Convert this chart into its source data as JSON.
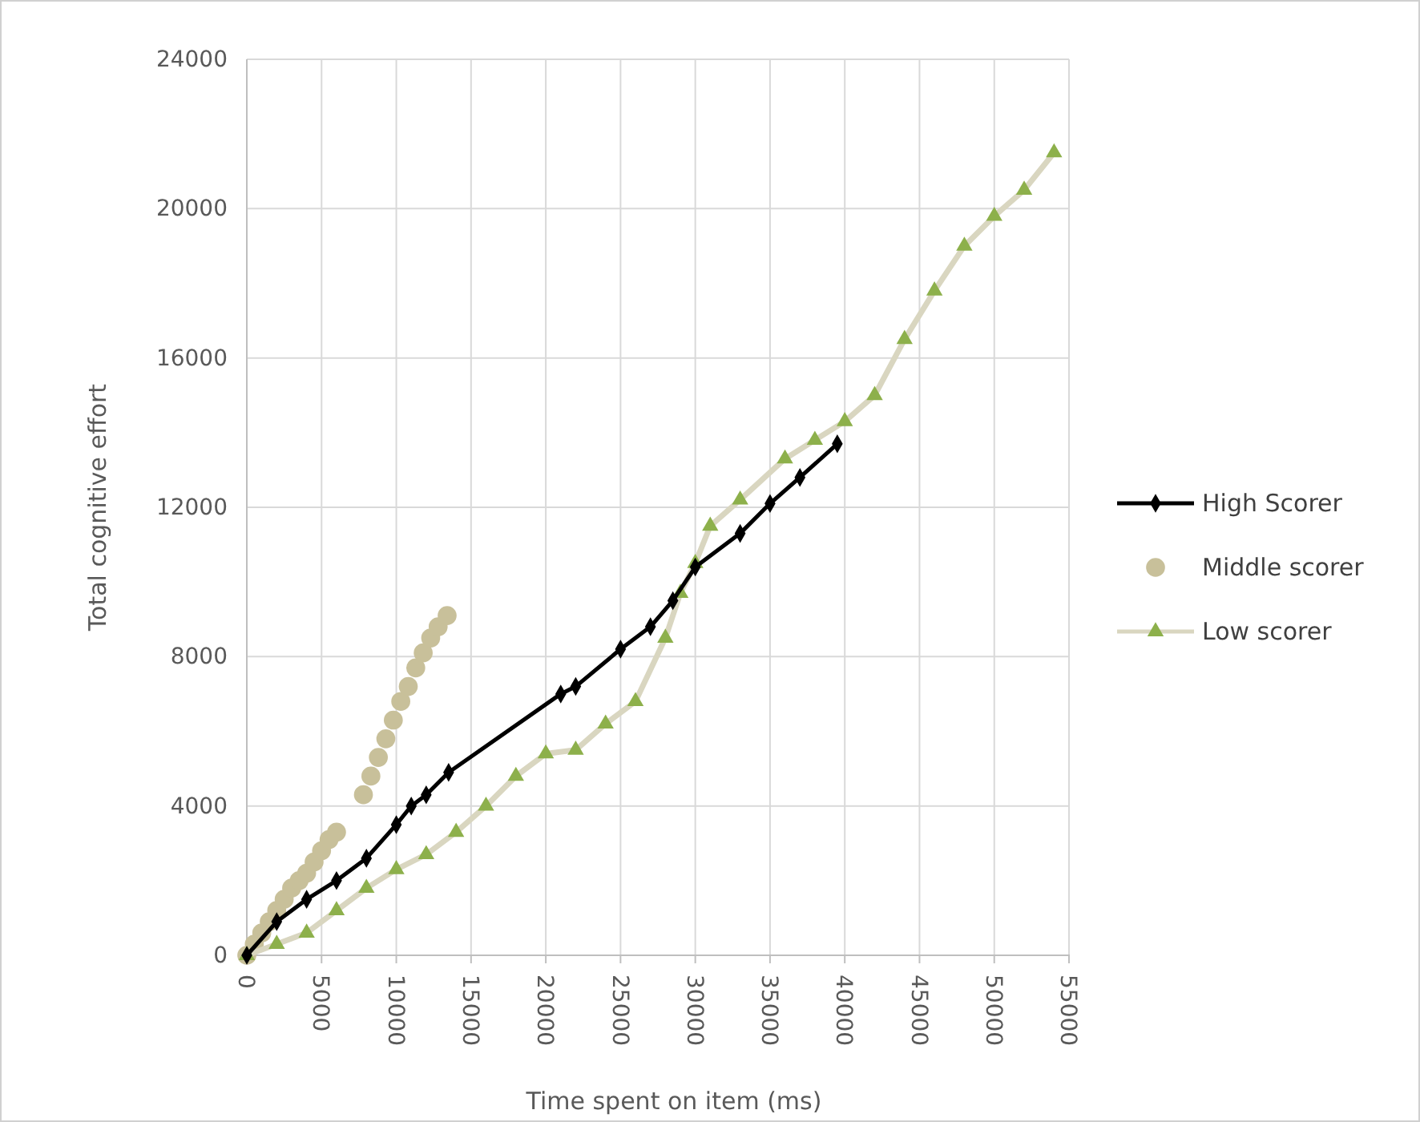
{
  "chart_data": {
    "type": "line",
    "xlabel": "Time spent on item (ms)",
    "ylabel": "Total cognitive effort",
    "xlim": [
      0,
      55000
    ],
    "xticks": [
      0,
      5000,
      10000,
      15000,
      20000,
      25000,
      30000,
      35000,
      40000,
      45000,
      50000,
      55000
    ],
    "ylim": [
      0,
      24000
    ],
    "yticks": [
      0,
      4000,
      8000,
      12000,
      16000,
      20000,
      24000
    ],
    "grid": true,
    "legend": "right",
    "series": [
      {
        "name": "High Scorer",
        "color": "#000000",
        "marker": "diamond",
        "x": [
          0,
          2000,
          4000,
          6000,
          8000,
          10000,
          11000,
          12000,
          13500,
          21000,
          22000,
          25000,
          27000,
          28500,
          30000,
          33000,
          35000,
          37000,
          39500
        ],
        "values": [
          0,
          900,
          1500,
          2000,
          2600,
          3500,
          4000,
          4300,
          4900,
          7000,
          7200,
          8200,
          8800,
          9500,
          10400,
          11300,
          12100,
          12800,
          13700
        ]
      },
      {
        "name": "Middle scorer",
        "type": "scatter",
        "color": "#c8c09a",
        "marker": "circle",
        "x": [
          0,
          500,
          1000,
          1500,
          2000,
          2500,
          3000,
          3500,
          4000,
          4500,
          5000,
          5500,
          6000,
          7800,
          8300,
          8800,
          9300,
          9800,
          10300,
          10800,
          11300,
          11800,
          12300,
          12800,
          13400
        ],
        "values": [
          0,
          300,
          600,
          900,
          1200,
          1500,
          1800,
          2000,
          2200,
          2500,
          2800,
          3100,
          3300,
          4300,
          4800,
          5300,
          5800,
          6300,
          6800,
          7200,
          7700,
          8100,
          8500,
          8800,
          9100
        ]
      },
      {
        "name": "Low scorer",
        "color": "#d9d6c0",
        "marker": "triangle",
        "x": [
          0,
          2000,
          4000,
          6000,
          8000,
          10000,
          12000,
          14000,
          16000,
          18000,
          20000,
          22000,
          24000,
          26000,
          28000,
          29000,
          30000,
          31000,
          33000,
          36000,
          38000,
          40000,
          42000,
          44000,
          46000,
          48000,
          50000,
          52000,
          54000
        ],
        "values": [
          0,
          300,
          600,
          1200,
          1800,
          2300,
          2700,
          3300,
          4000,
          4800,
          5400,
          5500,
          6200,
          6800,
          8500,
          9700,
          10500,
          11500,
          12200,
          13300,
          13800,
          14300,
          15000,
          16500,
          17800,
          19000,
          19800,
          20500,
          21500
        ]
      }
    ]
  }
}
